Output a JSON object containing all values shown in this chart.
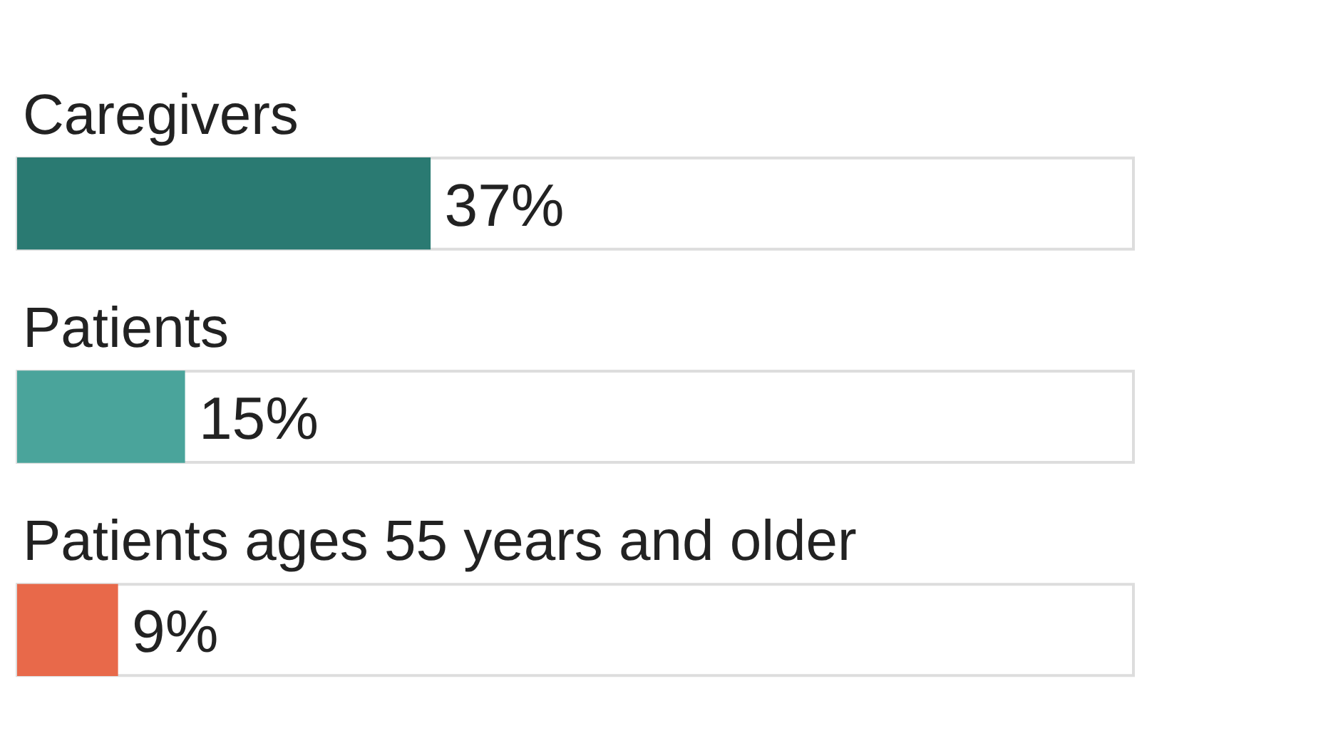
{
  "chart_data": {
    "type": "bar",
    "orientation": "horizontal",
    "categories": [
      "Caregivers",
      "Patients",
      "Patients ages 55 years and older"
    ],
    "values": [
      37,
      15,
      9
    ],
    "colors": [
      "#2a7a72",
      "#4aa49b",
      "#e8694a"
    ],
    "value_labels": [
      "37%",
      "15%",
      "9%"
    ],
    "xlim": [
      0,
      100
    ],
    "tick_labels": "y"
  }
}
